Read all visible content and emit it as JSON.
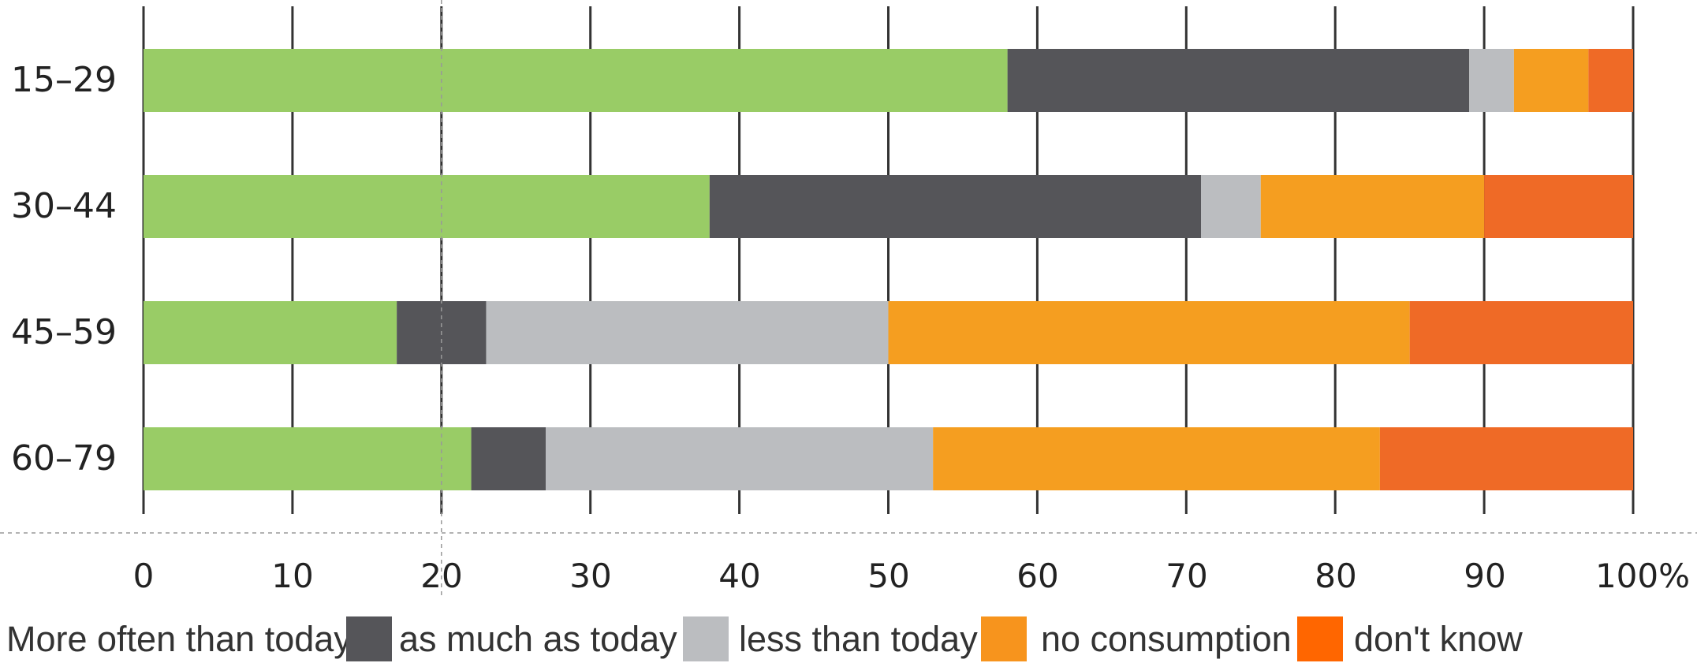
{
  "chart_data": {
    "type": "bar",
    "orientation": "horizontal",
    "stacked": true,
    "categories": [
      "15–29",
      "30–44",
      "45–59",
      "60–79"
    ],
    "series": [
      {
        "key": "s0",
        "name": "More often than today",
        "color": "#99cc66",
        "values": [
          58,
          38,
          17,
          22
        ]
      },
      {
        "key": "s1",
        "name": "as much as today",
        "color": "#555559",
        "values": [
          31,
          33,
          6,
          5
        ]
      },
      {
        "key": "s2",
        "name": "less than today",
        "color": "#bbbdc0",
        "values": [
          3,
          4,
          27,
          26
        ]
      },
      {
        "key": "s3",
        "name": "no consumption",
        "color": "#f59e20",
        "values": [
          5,
          15,
          35,
          30
        ]
      },
      {
        "key": "s4",
        "name": "don't know",
        "color": "#ef6a26",
        "values": [
          3,
          10,
          15,
          17
        ]
      }
    ],
    "xlim": [
      0,
      100
    ],
    "xticks": [
      0,
      10,
      20,
      30,
      40,
      50,
      60,
      70,
      80,
      90,
      100
    ],
    "xtick_labels": [
      "0",
      "10",
      "20",
      "30",
      "40",
      "50",
      "60",
      "70",
      "80",
      "90",
      "100%"
    ],
    "grid": "vertical",
    "reference_line_at": 20,
    "legend_position": "bottom",
    "legend_swatch_colors": [
      "#555559",
      "#bbbdc0",
      "#f7941d",
      "#ff6600"
    ]
  }
}
